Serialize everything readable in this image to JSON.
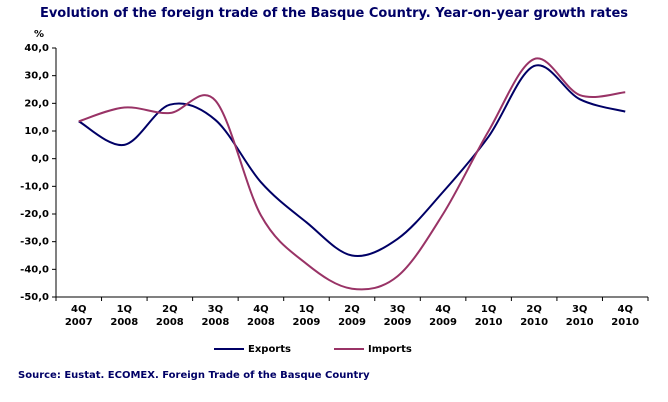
{
  "chart_data": {
    "type": "line",
    "title": "Evolution of the foreign trade of the Basque Country. Year-on-year growth rates",
    "y_unit": "%",
    "source": "Source: Eustat. ECOMEX. Foreign Trade of the Basque Country",
    "categories": [
      "4Q 2007",
      "1Q 2008",
      "2Q 2008",
      "3Q 2008",
      "4Q 2008",
      "1Q 2009",
      "2Q 2009",
      "3Q 2009",
      "4Q 2009",
      "1Q 2010",
      "2Q 2010",
      "3Q 2010",
      "4Q 2010"
    ],
    "series": [
      {
        "name": "Exports",
        "color": "#000066",
        "values": [
          13.5,
          5,
          19.5,
          14,
          -8.5,
          -23,
          -35,
          -29,
          -12,
          8,
          33.5,
          21.5,
          17
        ]
      },
      {
        "name": "Imports",
        "color": "#993366",
        "values": [
          13.5,
          18.5,
          16.5,
          21,
          -20.5,
          -38,
          -47,
          -42.5,
          -20,
          10,
          36,
          23,
          24
        ]
      }
    ],
    "ylim": [
      -50,
      40
    ],
    "yticks": [
      {
        "value": -50,
        "label": "-50,0"
      },
      {
        "value": -40,
        "label": "-40,0"
      },
      {
        "value": -30,
        "label": "-30,0"
      },
      {
        "value": -20,
        "label": "-20,0"
      },
      {
        "value": -10,
        "label": "-10,0"
      },
      {
        "value": 0,
        "label": "0,0"
      },
      {
        "value": 10,
        "label": "10,0"
      },
      {
        "value": 20,
        "label": "20,0"
      },
      {
        "value": 30,
        "label": "30,0"
      },
      {
        "value": 40,
        "label": "40,0"
      }
    ],
    "legend": "bottom"
  }
}
